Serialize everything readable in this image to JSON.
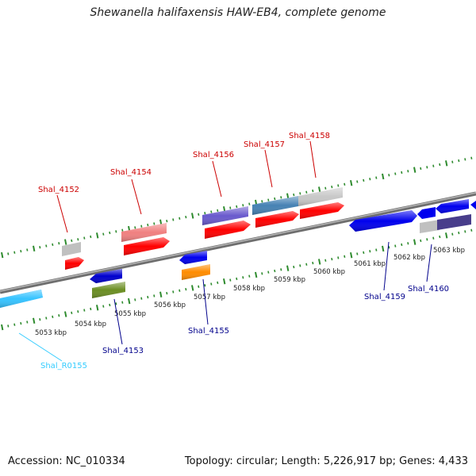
{
  "title": "Shewanella halifaxensis HAW-EB4, complete genome",
  "footer": {
    "accession": "Accession: NC_010334",
    "topology": "Topology: circular; Length: 5,226,917 bp; Genes: 4,433"
  },
  "colors": {
    "forward_label": "#cc0000",
    "reverse_label": "#00008b",
    "rna_label": "#33ccff",
    "tick": "#2e8b2e",
    "backbone": "#808080"
  },
  "scale_labels": [
    "5053 kbp",
    "5054 kbp",
    "5055 kbp",
    "5056 kbp",
    "5057 kbp",
    "5058 kbp",
    "5059 kbp",
    "5060 kbp",
    "5061 kbp",
    "5062 kbp",
    "5063 kbp"
  ],
  "forward_labels": [
    "Shal_4152",
    "Shal_4154",
    "Shal_4156",
    "Shal_4157",
    "Shal_4158"
  ],
  "reverse_labels": [
    "Shal_4153",
    "Shal_4155",
    "Shal_4159",
    "Shal_4160",
    "Shal_R0155"
  ]
}
